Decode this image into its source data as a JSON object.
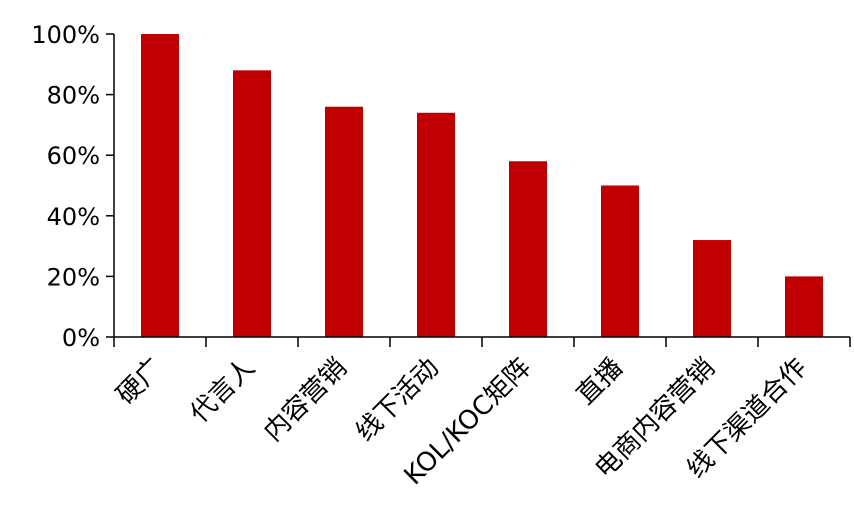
{
  "chart_data": {
    "type": "bar",
    "categories": [
      "硬广",
      "代言人",
      "内容营销",
      "线下活动",
      "KOL/KOC矩阵",
      "直播",
      "电商内容营销",
      "线下渠道合作"
    ],
    "values": [
      100,
      88,
      76,
      74,
      58,
      50,
      32,
      20
    ],
    "unit": "%",
    "ylim": [
      0,
      100
    ],
    "yticks": [
      0,
      20,
      40,
      60,
      80,
      100
    ],
    "ytick_labels": [
      "0%",
      "20%",
      "40%",
      "60%",
      "80%",
      "100%"
    ],
    "bar_color": "#c00000",
    "grid": false,
    "legend": "none"
  }
}
